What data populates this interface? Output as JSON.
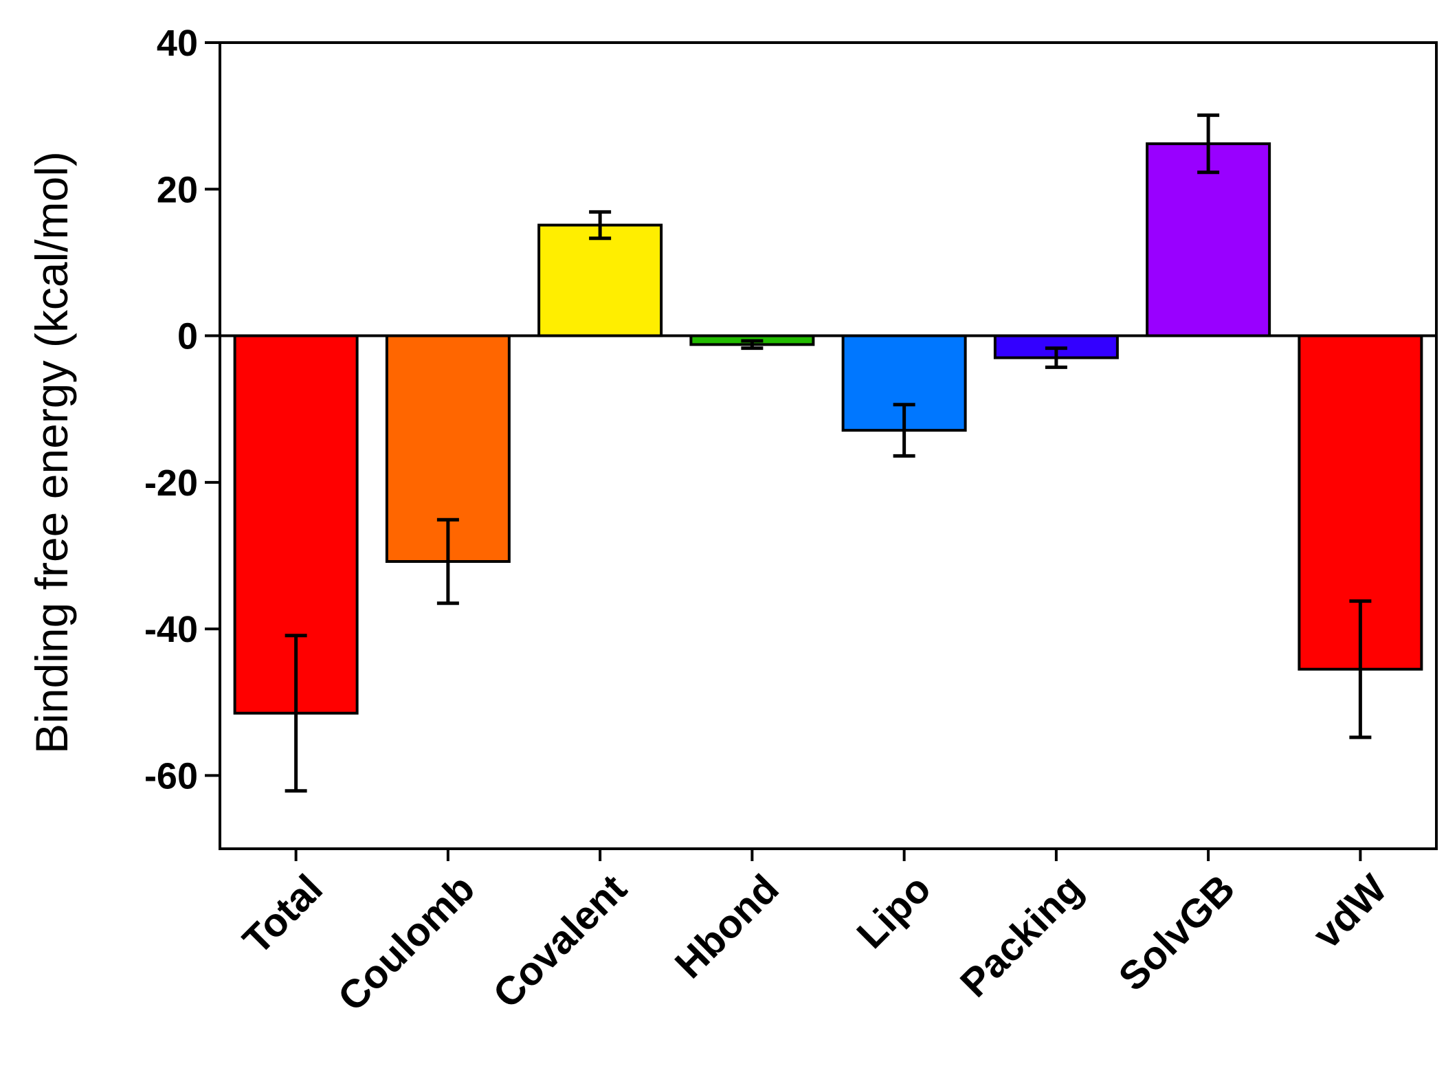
{
  "chart_data": {
    "type": "bar",
    "title": "",
    "xlabel": "",
    "ylabel": "Binding free energy (kcal/mol)",
    "ylim": [
      -70,
      40
    ],
    "yticks": [
      40,
      20,
      0,
      -20,
      -40,
      -60
    ],
    "grid": false,
    "legend": "none",
    "categories": [
      "Total",
      "Coulomb",
      "Covalent",
      "Hbond",
      "Lipo",
      "Packing",
      "SolvGB",
      "vdW"
    ],
    "values": [
      -51.5,
      -30.8,
      15.1,
      -1.2,
      -12.9,
      -3.0,
      26.2,
      -45.5
    ],
    "errors": [
      10.6,
      5.7,
      1.8,
      0.5,
      3.5,
      1.3,
      3.9,
      9.3
    ],
    "colors": [
      "#ff0000",
      "#ff6600",
      "#ffee00",
      "#22bb00",
      "#0077ff",
      "#3300ff",
      "#9900ff",
      "#ff0000"
    ]
  }
}
